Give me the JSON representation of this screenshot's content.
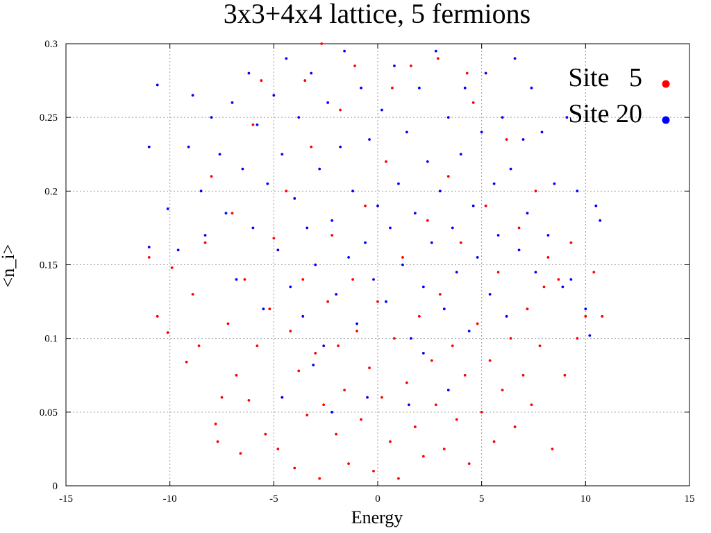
{
  "chart_data": {
    "type": "scatter",
    "title": "3x3+4x4 lattice, 5 fermions",
    "xlabel": "Energy",
    "ylabel": "<n_i>",
    "xlim": [
      -15,
      15
    ],
    "ylim": [
      0,
      0.3
    ],
    "x_ticks": [
      "-15",
      "-10",
      "-5",
      "0",
      "5",
      "10",
      "15"
    ],
    "y_ticks": [
      "0",
      "0.05",
      "0.1",
      "0.15",
      "0.2",
      "0.25",
      "0.3"
    ],
    "grid": true,
    "legend_position": "top-right",
    "series": [
      {
        "name": "Site   5",
        "color": "#ff0000",
        "points": [
          [
            -11.0,
            0.155
          ],
          [
            -10.6,
            0.115
          ],
          [
            -10.1,
            0.104
          ],
          [
            -9.9,
            0.148
          ],
          [
            -9.2,
            0.084
          ],
          [
            -8.9,
            0.13
          ],
          [
            -8.6,
            0.095
          ],
          [
            -8.3,
            0.165
          ],
          [
            -8.0,
            0.21
          ],
          [
            -7.8,
            0.042
          ],
          [
            -7.7,
            0.03
          ],
          [
            -7.5,
            0.06
          ],
          [
            -7.2,
            0.11
          ],
          [
            -7.0,
            0.185
          ],
          [
            -6.8,
            0.075
          ],
          [
            -6.6,
            0.022
          ],
          [
            -6.4,
            0.14
          ],
          [
            -6.2,
            0.058
          ],
          [
            -6.0,
            0.245
          ],
          [
            -5.8,
            0.095
          ],
          [
            -5.6,
            0.275
          ],
          [
            -5.4,
            0.035
          ],
          [
            -5.2,
            0.12
          ],
          [
            -5.0,
            0.168
          ],
          [
            -4.8,
            0.025
          ],
          [
            -4.6,
            0.06
          ],
          [
            -4.4,
            0.2
          ],
          [
            -4.2,
            0.105
          ],
          [
            -4.0,
            0.012
          ],
          [
            -3.8,
            0.078
          ],
          [
            -3.6,
            0.14
          ],
          [
            -3.4,
            0.048
          ],
          [
            -3.2,
            0.23
          ],
          [
            -3.0,
            0.09
          ],
          [
            -2.8,
            0.005
          ],
          [
            -2.7,
            0.3
          ],
          [
            -2.6,
            0.055
          ],
          [
            -2.4,
            0.125
          ],
          [
            -2.2,
            0.17
          ],
          [
            -2.0,
            0.035
          ],
          [
            -1.9,
            0.095
          ],
          [
            -1.8,
            0.255
          ],
          [
            -1.6,
            0.065
          ],
          [
            -1.4,
            0.015
          ],
          [
            -1.2,
            0.14
          ],
          [
            -1.0,
            0.105
          ],
          [
            -0.8,
            0.045
          ],
          [
            -0.6,
            0.19
          ],
          [
            -0.4,
            0.08
          ],
          [
            -0.2,
            0.01
          ],
          [
            0.0,
            0.125
          ],
          [
            0.2,
            0.06
          ],
          [
            0.4,
            0.22
          ],
          [
            0.6,
            0.03
          ],
          [
            0.8,
            0.1
          ],
          [
            1.0,
            0.005
          ],
          [
            1.2,
            0.155
          ],
          [
            1.4,
            0.07
          ],
          [
            1.6,
            0.285
          ],
          [
            1.8,
            0.04
          ],
          [
            2.0,
            0.115
          ],
          [
            2.2,
            0.02
          ],
          [
            2.4,
            0.18
          ],
          [
            2.6,
            0.085
          ],
          [
            2.8,
            0.055
          ],
          [
            3.0,
            0.13
          ],
          [
            3.2,
            0.025
          ],
          [
            3.4,
            0.21
          ],
          [
            3.6,
            0.095
          ],
          [
            3.8,
            0.045
          ],
          [
            4.0,
            0.165
          ],
          [
            4.2,
            0.075
          ],
          [
            4.4,
            0.015
          ],
          [
            4.6,
            0.26
          ],
          [
            4.8,
            0.11
          ],
          [
            5.0,
            0.05
          ],
          [
            5.2,
            0.19
          ],
          [
            5.4,
            0.085
          ],
          [
            5.6,
            0.03
          ],
          [
            5.8,
            0.145
          ],
          [
            6.0,
            0.065
          ],
          [
            6.2,
            0.235
          ],
          [
            6.4,
            0.1
          ],
          [
            6.6,
            0.04
          ],
          [
            6.8,
            0.175
          ],
          [
            7.0,
            0.075
          ],
          [
            7.2,
            0.12
          ],
          [
            7.4,
            0.055
          ],
          [
            7.6,
            0.2
          ],
          [
            7.8,
            0.095
          ],
          [
            8.0,
            0.135
          ],
          [
            8.2,
            0.155
          ],
          [
            8.4,
            0.025
          ],
          [
            8.7,
            0.14
          ],
          [
            9.0,
            0.075
          ],
          [
            9.3,
            0.165
          ],
          [
            9.6,
            0.1
          ],
          [
            10.0,
            0.115
          ],
          [
            10.4,
            0.145
          ],
          [
            10.8,
            0.115
          ],
          [
            -3.5,
            0.275
          ],
          [
            -1.1,
            0.285
          ],
          [
            2.9,
            0.29
          ],
          [
            0.7,
            0.27
          ],
          [
            4.3,
            0.28
          ]
        ]
      },
      {
        "name": "Site 20",
        "color": "#0000ff",
        "points": [
          [
            -11.0,
            0.23
          ],
          [
            -11.0,
            0.162
          ],
          [
            -10.6,
            0.272
          ],
          [
            -10.1,
            0.188
          ],
          [
            -9.6,
            0.16
          ],
          [
            -9.1,
            0.23
          ],
          [
            -8.9,
            0.265
          ],
          [
            -8.5,
            0.2
          ],
          [
            -8.3,
            0.17
          ],
          [
            -8.0,
            0.25
          ],
          [
            -7.6,
            0.225
          ],
          [
            -7.3,
            0.185
          ],
          [
            -7.0,
            0.26
          ],
          [
            -6.8,
            0.14
          ],
          [
            -6.5,
            0.215
          ],
          [
            -6.2,
            0.28
          ],
          [
            -6.0,
            0.175
          ],
          [
            -5.8,
            0.245
          ],
          [
            -5.5,
            0.12
          ],
          [
            -5.3,
            0.205
          ],
          [
            -5.0,
            0.265
          ],
          [
            -4.8,
            0.16
          ],
          [
            -4.6,
            0.225
          ],
          [
            -4.4,
            0.29
          ],
          [
            -4.2,
            0.135
          ],
          [
            -4.0,
            0.195
          ],
          [
            -3.8,
            0.25
          ],
          [
            -3.6,
            0.115
          ],
          [
            -3.4,
            0.175
          ],
          [
            -3.2,
            0.28
          ],
          [
            -3.0,
            0.15
          ],
          [
            -2.8,
            0.215
          ],
          [
            -2.6,
            0.095
          ],
          [
            -2.4,
            0.26
          ],
          [
            -2.2,
            0.18
          ],
          [
            -2.0,
            0.13
          ],
          [
            -1.8,
            0.23
          ],
          [
            -1.6,
            0.295
          ],
          [
            -1.4,
            0.155
          ],
          [
            -1.2,
            0.2
          ],
          [
            -1.0,
            0.11
          ],
          [
            -0.8,
            0.27
          ],
          [
            -0.6,
            0.165
          ],
          [
            -0.4,
            0.235
          ],
          [
            -0.2,
            0.14
          ],
          [
            0.0,
            0.19
          ],
          [
            0.2,
            0.255
          ],
          [
            0.4,
            0.125
          ],
          [
            0.6,
            0.175
          ],
          [
            0.8,
            0.285
          ],
          [
            1.0,
            0.205
          ],
          [
            1.2,
            0.15
          ],
          [
            1.4,
            0.24
          ],
          [
            1.6,
            0.1
          ],
          [
            1.8,
            0.185
          ],
          [
            2.0,
            0.27
          ],
          [
            2.2,
            0.135
          ],
          [
            2.4,
            0.22
          ],
          [
            2.6,
            0.165
          ],
          [
            2.8,
            0.295
          ],
          [
            3.0,
            0.2
          ],
          [
            3.2,
            0.12
          ],
          [
            3.4,
            0.25
          ],
          [
            3.6,
            0.175
          ],
          [
            3.8,
            0.145
          ],
          [
            4.0,
            0.225
          ],
          [
            4.2,
            0.27
          ],
          [
            4.4,
            0.105
          ],
          [
            4.6,
            0.19
          ],
          [
            4.8,
            0.155
          ],
          [
            5.0,
            0.24
          ],
          [
            5.2,
            0.28
          ],
          [
            5.4,
            0.13
          ],
          [
            5.6,
            0.205
          ],
          [
            5.8,
            0.17
          ],
          [
            6.0,
            0.25
          ],
          [
            6.2,
            0.115
          ],
          [
            6.4,
            0.215
          ],
          [
            6.6,
            0.29
          ],
          [
            6.8,
            0.16
          ],
          [
            7.0,
            0.235
          ],
          [
            7.2,
            0.185
          ],
          [
            7.4,
            0.27
          ],
          [
            7.6,
            0.145
          ],
          [
            7.9,
            0.24
          ],
          [
            8.2,
            0.17
          ],
          [
            8.5,
            0.205
          ],
          [
            8.9,
            0.135
          ],
          [
            9.1,
            0.25
          ],
          [
            9.3,
            0.14
          ],
          [
            9.6,
            0.2
          ],
          [
            10.0,
            0.12
          ],
          [
            10.5,
            0.19
          ],
          [
            10.2,
            0.102
          ],
          [
            10.7,
            0.18
          ],
          [
            -4.6,
            0.06
          ],
          [
            -2.2,
            0.05
          ],
          [
            -0.5,
            0.06
          ],
          [
            1.5,
            0.055
          ],
          [
            3.4,
            0.065
          ],
          [
            -3.1,
            0.082
          ],
          [
            2.2,
            0.09
          ]
        ]
      }
    ]
  }
}
